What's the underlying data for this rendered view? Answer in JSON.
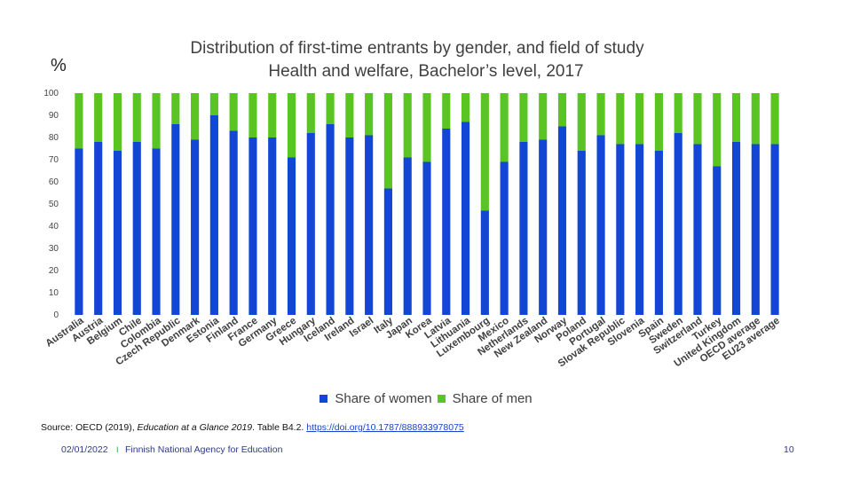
{
  "chart_data": {
    "type": "bar",
    "stacked": true,
    "title": "Distribution of first-time entrants by gender, and field of study",
    "subtitle": "Health and welfare, Bachelor’s level, 2017",
    "ylabel": "%",
    "ylim": [
      0,
      100
    ],
    "yticks": [
      "0",
      "10",
      "20",
      "30",
      "40",
      "50",
      "60",
      "70",
      "80",
      "90",
      "100"
    ],
    "categories": [
      "Australia",
      "Austria",
      "Belgium",
      "Chile",
      "Colombia",
      "Czech Republic",
      "Denmark",
      "Estonia",
      "Finland",
      "France",
      "Germany",
      "Greece",
      "Hungary",
      "Iceland",
      "Ireland",
      "Israel",
      "Italy",
      "Japan",
      "Korea",
      "Latvia",
      "Lithuania",
      "Luxembourg",
      "Mexico",
      "Netherlands",
      "New Zealand",
      "Norway",
      "Poland",
      "Portugal",
      "Slovak Republic",
      "Slovenia",
      "Spain",
      "Sweden",
      "Switzerland",
      "Turkey",
      "United Kingdom",
      "OECD average",
      "EU23 average"
    ],
    "series": [
      {
        "name": "Share of women",
        "color": "#1446d6",
        "values": [
          75,
          78,
          74,
          78,
          75,
          86,
          79,
          90,
          83,
          80,
          80,
          71,
          82,
          86,
          80,
          81,
          57,
          71,
          69,
          84,
          87,
          47,
          69,
          78,
          79,
          85,
          74,
          81,
          77,
          77,
          74,
          82,
          77,
          67,
          78,
          77,
          77
        ]
      },
      {
        "name": "Share of men",
        "color": "#5ac522",
        "values": [
          25,
          22,
          26,
          22,
          25,
          14,
          21,
          10,
          17,
          20,
          20,
          29,
          18,
          14,
          20,
          19,
          43,
          29,
          31,
          16,
          13,
          53,
          31,
          22,
          21,
          15,
          26,
          19,
          23,
          23,
          26,
          18,
          23,
          33,
          22,
          23,
          23
        ]
      }
    ],
    "legend_position": "bottom",
    "grid": false
  },
  "text": {
    "title": "Distribution of first-time entrants by gender, and field of study",
    "subtitle": "Health and welfare, Bachelor’s level, 2017",
    "unit": "%",
    "legend_women": "Share of women",
    "legend_men": "Share of men",
    "source_prefix": "Source: OECD (2019), ",
    "source_pub": "Education at a Glance 2019",
    "source_mid": ". Table B4.2. ",
    "source_link": "https://doi.org/10.1787/888933978075",
    "footer_date": "02/01/2022",
    "footer_sep": "I",
    "footer_org": "Finnish National Agency for Education",
    "page_number": "10"
  }
}
